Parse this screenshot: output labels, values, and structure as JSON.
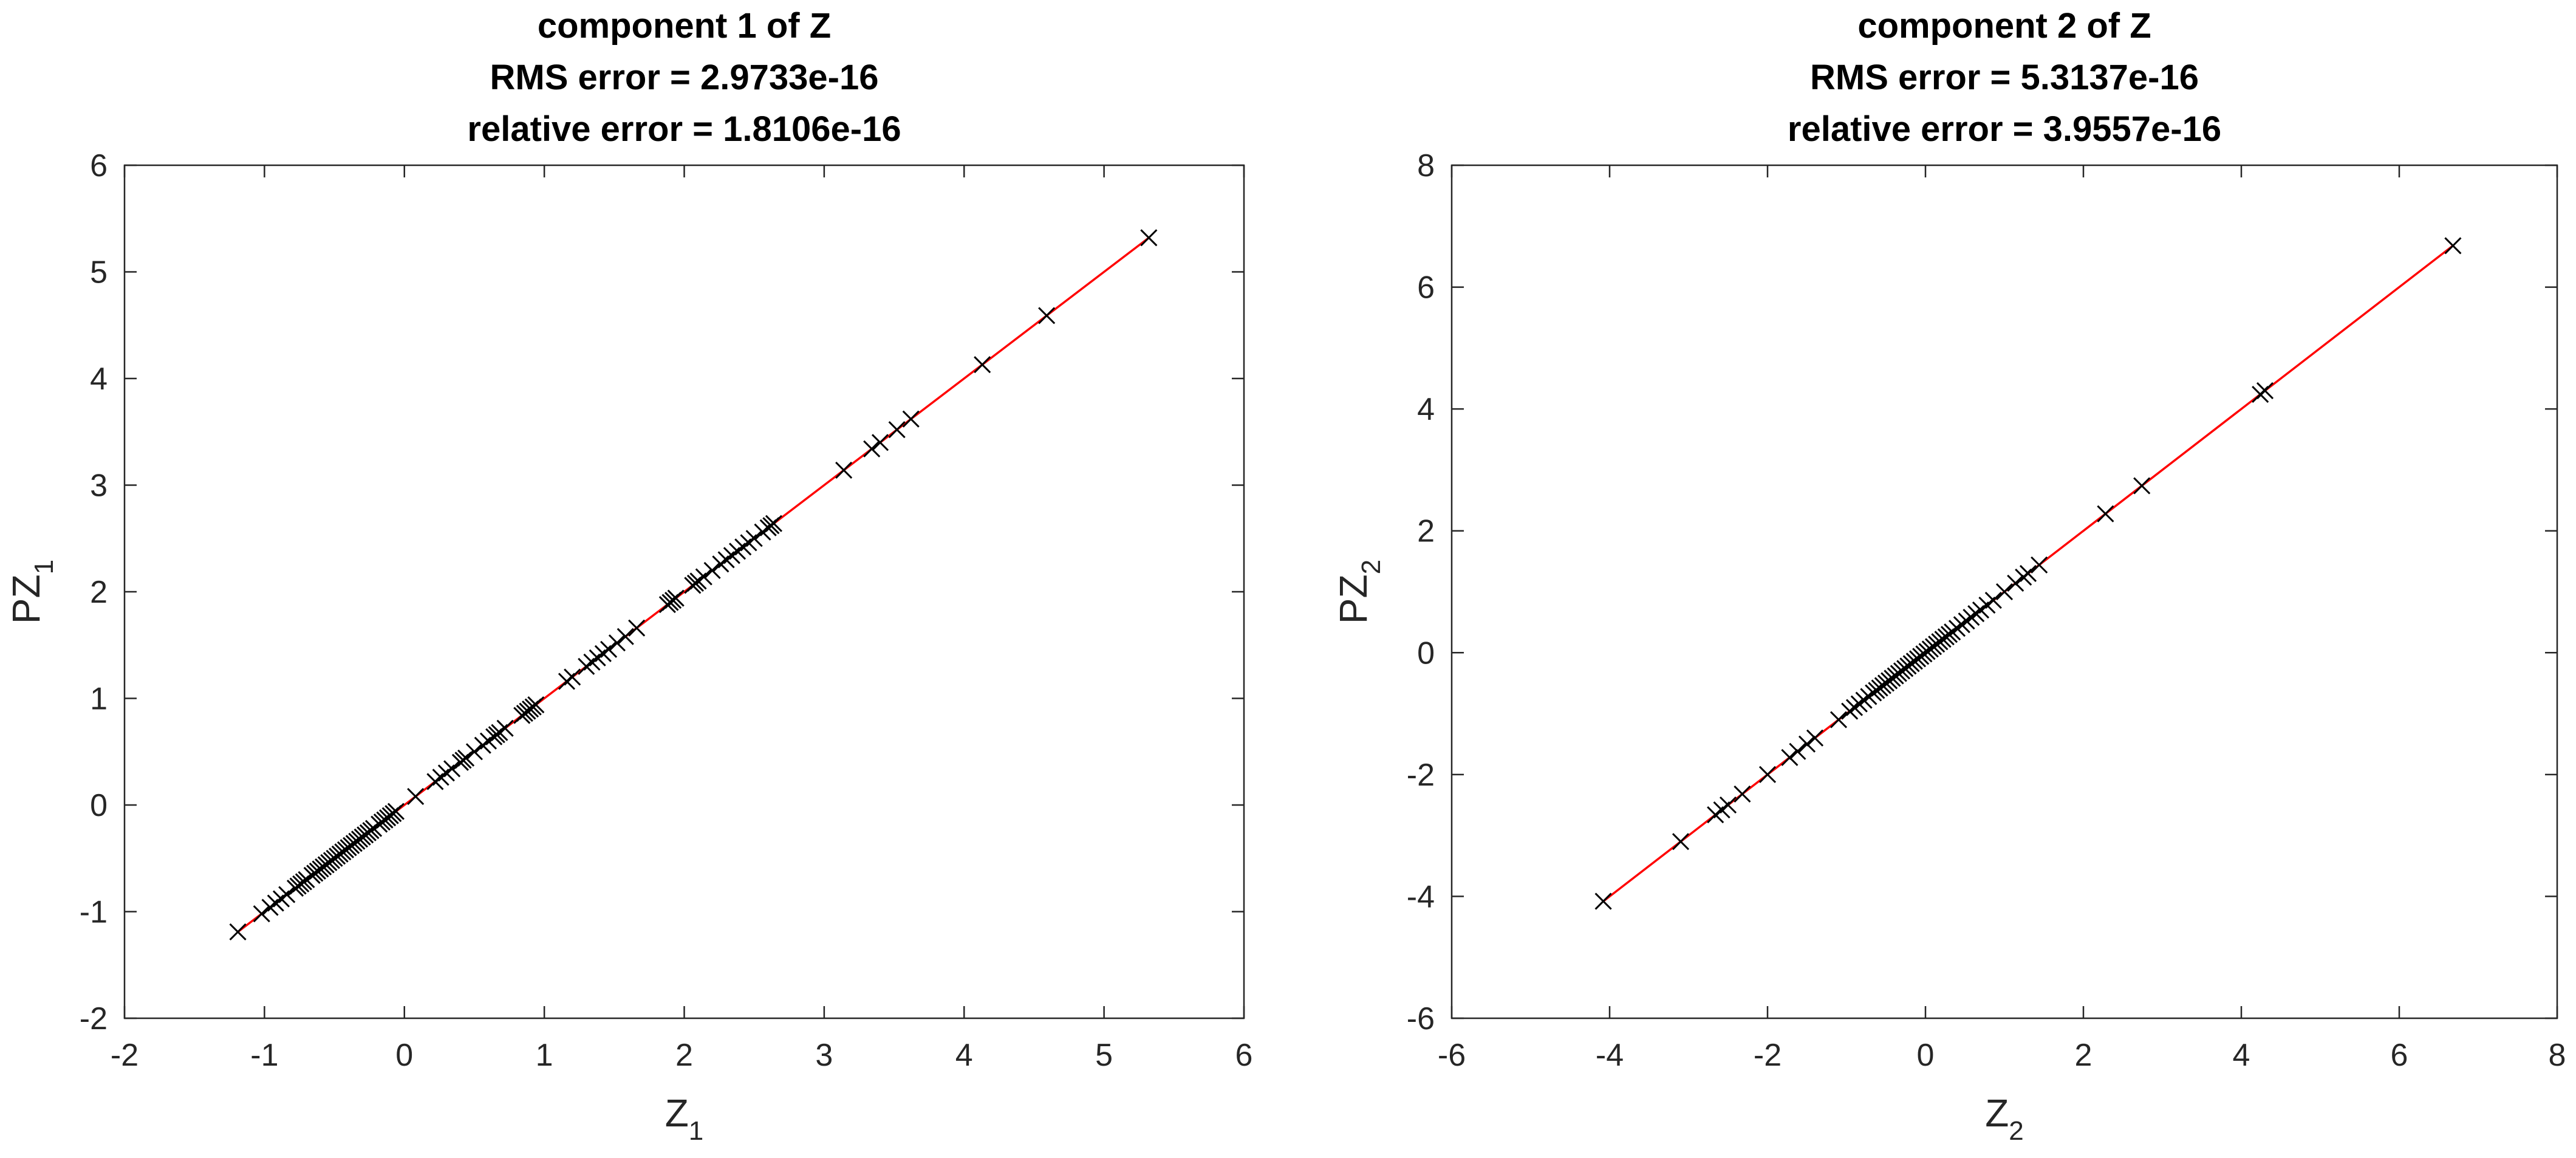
{
  "chart_data": [
    {
      "type": "scatter",
      "title_lines": [
        "component 1 of Z",
        "RMS error = 2.9733e-16",
        "relative error = 1.8106e-16"
      ],
      "xlabel": {
        "main": "Z",
        "sub": "1"
      },
      "ylabel": {
        "main": "PZ",
        "sub": "1"
      },
      "xlim": [
        -2,
        6
      ],
      "ylim": [
        -2,
        6
      ],
      "xticks": [
        -2,
        -1,
        0,
        1,
        2,
        3,
        4,
        5,
        6
      ],
      "yticks": [
        -2,
        -1,
        0,
        1,
        2,
        3,
        4,
        5,
        6
      ],
      "grid": false,
      "line_color": "#ff0000",
      "marker": "x",
      "marker_color": "#000000",
      "fit_line": {
        "x": [
          -1.19,
          5.32
        ],
        "y": [
          -1.19,
          5.32
        ]
      },
      "series": [
        {
          "x": [
            -1.19,
            -1.02,
            -0.96,
            -0.92,
            -0.88,
            -0.84,
            -0.78,
            -0.76,
            -0.74,
            -0.72,
            -0.7,
            -0.66,
            -0.64,
            -0.62,
            -0.6,
            -0.58,
            -0.56,
            -0.54,
            -0.52,
            -0.5,
            -0.48,
            -0.46,
            -0.44,
            -0.42,
            -0.4,
            -0.38,
            -0.36,
            -0.34,
            -0.32,
            -0.3,
            -0.28,
            -0.26,
            -0.24,
            -0.22,
            -0.18,
            -0.16,
            -0.14,
            -0.12,
            -0.1,
            -0.08,
            -0.06,
            0.08,
            0.22,
            0.26,
            0.3,
            0.34,
            0.4,
            0.42,
            0.44,
            0.5,
            0.56,
            0.6,
            0.64,
            0.66,
            0.68,
            0.72,
            0.84,
            0.86,
            0.88,
            0.9,
            0.92,
            0.94,
            1.16,
            1.2,
            1.3,
            1.34,
            1.38,
            1.42,
            1.46,
            1.52,
            1.58,
            1.66,
            1.88,
            1.9,
            1.92,
            1.94,
            2.06,
            2.08,
            2.1,
            2.14,
            2.2,
            2.26,
            2.3,
            2.34,
            2.38,
            2.42,
            2.46,
            2.5,
            2.56,
            2.6,
            2.62,
            2.64,
            3.14,
            3.34,
            3.4,
            3.52,
            3.62,
            4.13,
            4.59,
            5.32
          ],
          "y": [
            -1.19,
            -1.02,
            -0.96,
            -0.92,
            -0.88,
            -0.84,
            -0.78,
            -0.76,
            -0.74,
            -0.72,
            -0.7,
            -0.66,
            -0.64,
            -0.62,
            -0.6,
            -0.58,
            -0.56,
            -0.54,
            -0.52,
            -0.5,
            -0.48,
            -0.46,
            -0.44,
            -0.42,
            -0.4,
            -0.38,
            -0.36,
            -0.34,
            -0.32,
            -0.3,
            -0.28,
            -0.26,
            -0.24,
            -0.22,
            -0.18,
            -0.16,
            -0.14,
            -0.12,
            -0.1,
            -0.08,
            -0.06,
            0.08,
            0.22,
            0.26,
            0.3,
            0.34,
            0.4,
            0.42,
            0.44,
            0.5,
            0.56,
            0.6,
            0.64,
            0.66,
            0.68,
            0.72,
            0.84,
            0.86,
            0.88,
            0.9,
            0.92,
            0.94,
            1.16,
            1.2,
            1.3,
            1.34,
            1.38,
            1.42,
            1.46,
            1.52,
            1.58,
            1.66,
            1.88,
            1.9,
            1.92,
            1.94,
            2.06,
            2.08,
            2.1,
            2.14,
            2.2,
            2.26,
            2.3,
            2.34,
            2.38,
            2.42,
            2.46,
            2.5,
            2.56,
            2.6,
            2.62,
            2.64,
            3.14,
            3.34,
            3.4,
            3.52,
            3.62,
            4.13,
            4.59,
            5.32
          ]
        }
      ]
    },
    {
      "type": "scatter",
      "title_lines": [
        "component 2 of Z",
        "RMS error = 5.3137e-16",
        "relative error = 3.9557e-16"
      ],
      "xlabel": {
        "main": "Z",
        "sub": "2"
      },
      "ylabel": {
        "main": "PZ",
        "sub": "2"
      },
      "xlim": [
        -6,
        8
      ],
      "ylim": [
        -6,
        8
      ],
      "xticks": [
        -6,
        -4,
        -2,
        0,
        2,
        4,
        6,
        8
      ],
      "yticks": [
        -6,
        -4,
        -2,
        0,
        2,
        4,
        6,
        8
      ],
      "grid": false,
      "line_color": "#ff0000",
      "marker": "x",
      "marker_color": "#000000",
      "fit_line": {
        "x": [
          -4.08,
          6.68
        ],
        "y": [
          -4.08,
          6.68
        ]
      },
      "series": [
        {
          "x": [
            -4.08,
            -3.1,
            -2.66,
            -2.58,
            -2.5,
            -2.32,
            -2.0,
            -1.72,
            -1.62,
            -1.5,
            -1.4,
            -1.1,
            -0.96,
            -0.9,
            -0.84,
            -0.78,
            -0.72,
            -0.66,
            -0.62,
            -0.58,
            -0.54,
            -0.5,
            -0.46,
            -0.42,
            -0.38,
            -0.34,
            -0.3,
            -0.26,
            -0.22,
            -0.18,
            -0.14,
            -0.1,
            -0.06,
            -0.02,
            0.02,
            0.06,
            0.1,
            0.14,
            0.18,
            0.22,
            0.26,
            0.3,
            0.34,
            0.4,
            0.46,
            0.52,
            0.58,
            0.64,
            0.7,
            0.78,
            0.86,
            1.0,
            1.14,
            1.24,
            1.3,
            1.44,
            2.28,
            2.74,
            4.24,
            4.3,
            6.68
          ],
          "y": [
            -4.08,
            -3.1,
            -2.66,
            -2.58,
            -2.5,
            -2.32,
            -2.0,
            -1.72,
            -1.62,
            -1.5,
            -1.4,
            -1.1,
            -0.96,
            -0.9,
            -0.84,
            -0.78,
            -0.72,
            -0.66,
            -0.62,
            -0.58,
            -0.54,
            -0.5,
            -0.46,
            -0.42,
            -0.38,
            -0.34,
            -0.3,
            -0.26,
            -0.22,
            -0.18,
            -0.14,
            -0.1,
            -0.06,
            -0.02,
            0.02,
            0.06,
            0.1,
            0.14,
            0.18,
            0.22,
            0.26,
            0.3,
            0.34,
            0.4,
            0.46,
            0.52,
            0.58,
            0.64,
            0.7,
            0.78,
            0.86,
            1.0,
            1.14,
            1.24,
            1.3,
            1.44,
            2.28,
            2.74,
            4.24,
            4.3,
            6.68
          ]
        }
      ]
    }
  ]
}
